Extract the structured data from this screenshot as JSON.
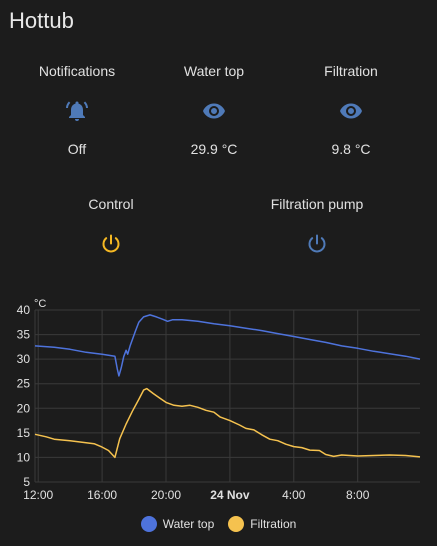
{
  "card": {
    "title": "Hottub"
  },
  "entities": [
    {
      "name": "Notifications",
      "state": "Off",
      "icon": "bell-ring-icon",
      "color": "#4f7ab8"
    },
    {
      "name": "Water top",
      "state": "29.9 °C",
      "icon": "eye-icon",
      "color": "#4f7ab8"
    },
    {
      "name": "Filtration",
      "state": "9.8 °C",
      "icon": "eye-icon",
      "color": "#4f7ab8"
    },
    {
      "name": "Control",
      "icon": "power-icon",
      "color": "#f5b823"
    },
    {
      "name": "Filtration pump",
      "icon": "power-icon",
      "color": "#4f7ab8"
    }
  ],
  "chart_data": {
    "type": "line",
    "ylabel": "°C",
    "ylim": [
      5,
      40
    ],
    "yticks": [
      5,
      10,
      15,
      20,
      25,
      30,
      35,
      40
    ],
    "xlim": [
      11.8,
      35.9
    ],
    "xticks": [
      {
        "x": 12,
        "label": "12:00",
        "bold": false
      },
      {
        "x": 16,
        "label": "16:00",
        "bold": false
      },
      {
        "x": 20,
        "label": "20:00",
        "bold": false
      },
      {
        "x": 24,
        "label": "24 Nov",
        "bold": true
      },
      {
        "x": 28,
        "label": "4:00",
        "bold": false
      },
      {
        "x": 32,
        "label": "8:00",
        "bold": false
      }
    ],
    "grid": true,
    "legend_position": "bottom",
    "series": [
      {
        "name": "Water top",
        "color": "#4e73dc",
        "points": [
          [
            11.8,
            32.7
          ],
          [
            13,
            32.4
          ],
          [
            14,
            32.0
          ],
          [
            15,
            31.4
          ],
          [
            16,
            31.0
          ],
          [
            16.8,
            30.6
          ],
          [
            16.95,
            28.0
          ],
          [
            17.05,
            26.6
          ],
          [
            17.2,
            28.3
          ],
          [
            17.35,
            30.5
          ],
          [
            17.5,
            31.8
          ],
          [
            17.6,
            31.0
          ],
          [
            17.75,
            32.7
          ],
          [
            17.9,
            34.0
          ],
          [
            18.1,
            35.8
          ],
          [
            18.3,
            37.5
          ],
          [
            18.6,
            38.6
          ],
          [
            19.0,
            39.0
          ],
          [
            19.4,
            38.6
          ],
          [
            19.8,
            38.1
          ],
          [
            20.1,
            37.7
          ],
          [
            20.4,
            38.0
          ],
          [
            21,
            38.0
          ],
          [
            22,
            37.7
          ],
          [
            23,
            37.2
          ],
          [
            24,
            36.8
          ],
          [
            25,
            36.3
          ],
          [
            26,
            35.8
          ],
          [
            27,
            35.2
          ],
          [
            28,
            34.6
          ],
          [
            29,
            34.0
          ],
          [
            30,
            33.4
          ],
          [
            31,
            32.7
          ],
          [
            32,
            32.2
          ],
          [
            33,
            31.6
          ],
          [
            34,
            31.1
          ],
          [
            35,
            30.6
          ],
          [
            35.9,
            30.0
          ]
        ]
      },
      {
        "name": "Filtration",
        "color": "#f5c24f",
        "points": [
          [
            11.8,
            14.7
          ],
          [
            12.5,
            14.2
          ],
          [
            13,
            13.7
          ],
          [
            14,
            13.4
          ],
          [
            15,
            13.0
          ],
          [
            15.5,
            12.8
          ],
          [
            16,
            12.1
          ],
          [
            16.4,
            11.4
          ],
          [
            16.8,
            10.0
          ],
          [
            17.1,
            13.8
          ],
          [
            17.5,
            16.8
          ],
          [
            17.9,
            19.4
          ],
          [
            18.3,
            21.8
          ],
          [
            18.6,
            23.7
          ],
          [
            18.8,
            24.0
          ],
          [
            19.2,
            23.0
          ],
          [
            19.6,
            22.1
          ],
          [
            20,
            21.2
          ],
          [
            20.5,
            20.6
          ],
          [
            21,
            20.4
          ],
          [
            21.5,
            20.6
          ],
          [
            22,
            20.2
          ],
          [
            22.5,
            19.6
          ],
          [
            23,
            19.2
          ],
          [
            23.4,
            18.2
          ],
          [
            24,
            17.5
          ],
          [
            24.6,
            16.6
          ],
          [
            25,
            15.9
          ],
          [
            25.5,
            15.6
          ],
          [
            26,
            14.6
          ],
          [
            26.5,
            13.7
          ],
          [
            27,
            13.4
          ],
          [
            27.5,
            12.7
          ],
          [
            28,
            12.2
          ],
          [
            28.5,
            12.0
          ],
          [
            29,
            11.5
          ],
          [
            29.6,
            11.4
          ],
          [
            30,
            10.6
          ],
          [
            30.5,
            10.2
          ],
          [
            31,
            10.5
          ],
          [
            32,
            10.3
          ],
          [
            33,
            10.4
          ],
          [
            34,
            10.5
          ],
          [
            35,
            10.4
          ],
          [
            35.9,
            10.1
          ]
        ]
      }
    ]
  }
}
